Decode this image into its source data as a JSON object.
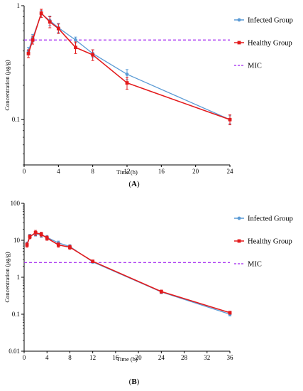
{
  "chart_data": [
    {
      "type": "line",
      "panel_label": "(A)",
      "panel_letter": "A",
      "xlabel": "Time (h)",
      "ylabel": "Concentration (μg/g)",
      "yscale": "log",
      "xlim": [
        0,
        24
      ],
      "ylim": [
        0.04,
        1
      ],
      "xticks": [
        0,
        4,
        8,
        12,
        16,
        20,
        24
      ],
      "yticks": [
        {
          "value": 0.1,
          "label": "0.1"
        },
        {
          "value": 1,
          "label": "1"
        }
      ],
      "legend": "right",
      "series": [
        {
          "name": "Infected Group",
          "color": "#5b9bd5",
          "marker": "circle",
          "x": [
            0.5,
            1,
            2,
            3,
            4,
            6,
            8,
            12,
            24
          ],
          "y": [
            0.4,
            0.52,
            0.85,
            0.74,
            0.64,
            0.5,
            0.38,
            0.25,
            0.1
          ],
          "err": [
            0.03,
            0.04,
            0.06,
            0.07,
            0.06,
            0.03,
            0.03,
            0.025,
            0.008
          ]
        },
        {
          "name": "Healthy Group",
          "color": "#e31a1c",
          "marker": "square",
          "x": [
            0.5,
            1,
            2,
            3,
            4,
            6,
            8,
            12,
            24
          ],
          "y": [
            0.38,
            0.5,
            0.86,
            0.72,
            0.63,
            0.43,
            0.37,
            0.21,
            0.1
          ],
          "err": [
            0.03,
            0.04,
            0.07,
            0.08,
            0.06,
            0.05,
            0.04,
            0.025,
            0.01
          ]
        }
      ],
      "reference_lines": [
        {
          "name": "MIC",
          "y": 0.5,
          "color": "#a020f0",
          "style": "dashed"
        }
      ]
    },
    {
      "type": "line",
      "panel_label": "(B)",
      "panel_letter": "B",
      "xlabel": "Time (h)",
      "ylabel": "Concentration (μg/g)",
      "yscale": "log",
      "xlim": [
        0,
        36
      ],
      "ylim": [
        0.01,
        100
      ],
      "xticks": [
        0,
        4,
        8,
        12,
        16,
        20,
        24,
        28,
        32,
        36
      ],
      "yticks": [
        {
          "value": 0.01,
          "label": "0.01"
        },
        {
          "value": 0.1,
          "label": "0.1"
        },
        {
          "value": 1,
          "label": "1"
        },
        {
          "value": 10,
          "label": "10"
        },
        {
          "value": 100,
          "label": "100"
        }
      ],
      "legend": "right",
      "series": [
        {
          "name": "Infected Group",
          "color": "#5b9bd5",
          "marker": "circle",
          "x": [
            0.5,
            1,
            2,
            3,
            4,
            6,
            8,
            12,
            24,
            36
          ],
          "y": [
            8,
            13,
            15,
            14,
            12,
            8.5,
            6.8,
            2.6,
            0.4,
            0.1
          ],
          "err": [
            1,
            1.5,
            2,
            2,
            1.5,
            1,
            0.8,
            0.2,
            0.04,
            0.01
          ]
        },
        {
          "name": "Healthy Group",
          "color": "#e31a1c",
          "marker": "square",
          "x": [
            0.5,
            1,
            2,
            3,
            4,
            6,
            8,
            12,
            24,
            36
          ],
          "y": [
            7.5,
            12.5,
            16,
            14.5,
            11.5,
            7.5,
            6.5,
            2.7,
            0.41,
            0.11
          ],
          "err": [
            1,
            1.5,
            2.5,
            2,
            1.5,
            1,
            0.8,
            0.2,
            0.04,
            0.01
          ]
        }
      ],
      "reference_lines": [
        {
          "name": "MIC",
          "y": 2.5,
          "color": "#a020f0",
          "style": "dashed"
        }
      ]
    }
  ]
}
